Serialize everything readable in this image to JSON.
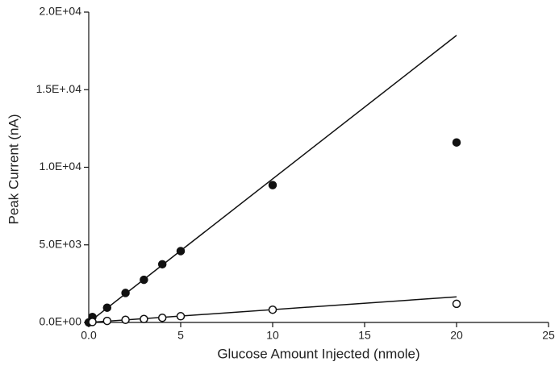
{
  "chart_data": {
    "type": "scatter",
    "x_label": "Glucose Amount Injected (nmole)",
    "y_label": "Peak Current (nA)",
    "xlim": [
      0,
      25
    ],
    "xticks": [
      {
        "value": 0,
        "label": "0.0"
      },
      5,
      10,
      15,
      20,
      25
    ],
    "ylim": [
      0,
      20000
    ],
    "yticks": [
      {
        "value": 0,
        "label": "0.0E+00"
      },
      {
        "value": 5000,
        "label": "5.0E+03"
      },
      {
        "value": 10000,
        "label": "1.0E+04"
      },
      {
        "value": 15000,
        "label": "1.5E+.04"
      },
      {
        "value": 20000,
        "label": "2.0E+04"
      }
    ],
    "series": [
      {
        "color": "#111111",
        "filled": true,
        "x": [
          0,
          0.2,
          1,
          2,
          3,
          4,
          5,
          10,
          20
        ],
        "values": [
          0,
          350,
          950,
          1900,
          2750,
          3750,
          4600,
          8850,
          11600
        ]
      },
      {
        "color": "#111111",
        "filled": false,
        "x": [
          0.2,
          1,
          2,
          3,
          4,
          5,
          10,
          20
        ],
        "values": [
          30,
          100,
          170,
          220,
          300,
          400,
          820,
          1200
        ]
      }
    ],
    "fits": [
      {
        "x": [
          0,
          20
        ],
        "values": [
          0,
          18500
        ]
      },
      {
        "x": [
          0,
          20
        ],
        "values": [
          0,
          1650
        ]
      }
    ]
  }
}
